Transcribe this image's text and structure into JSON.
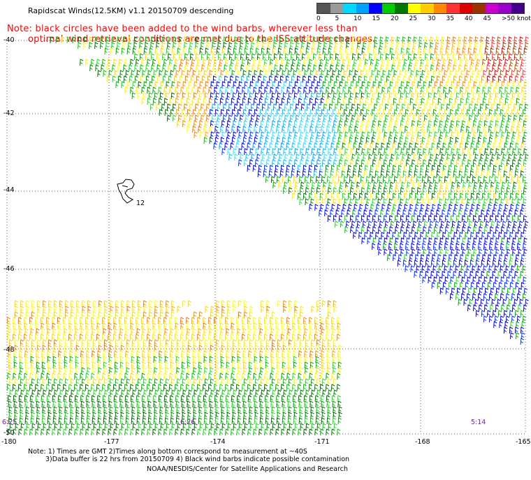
{
  "header": {
    "title": "Rapidscat Winds(12.5KM) v1.1 20150709 descending",
    "note_line1": "Note: black circles have been added to the wind barbs, wherever less than",
    "note_line2": "optimal wind retrieval conditions are met due to the ISS attitude changes."
  },
  "legend": {
    "labels": [
      "0",
      "5",
      "10",
      "15",
      "20",
      "25",
      "30",
      "35",
      "40",
      "45",
      ">50 knots"
    ],
    "colors": [
      "#555555",
      "#9a9a9a",
      "#00d8ff",
      "#00a0ff",
      "#0000ff",
      "#00cc00",
      "#007700",
      "#ffff00",
      "#ffcc00",
      "#ff8800",
      "#ff3333",
      "#dd0000",
      "#993300",
      "#cc00cc",
      "#9900cc",
      "#440088"
    ]
  },
  "map": {
    "lat_labels": [
      "-40",
      "-42",
      "-44",
      "-46",
      "-48",
      "-50"
    ],
    "lon_labels": [
      "-180",
      "-177",
      "-174",
      "-171",
      "-168",
      "-165"
    ],
    "time_labels": [
      "6:25",
      "6:26",
      "5:14"
    ],
    "island_label": "12"
  },
  "footer": {
    "line1": "Note: 1) Times are GMT 2)Times along bottom correspond to measurement at ~40S",
    "line2": "3)Data buffer is 22 hrs from 20150709 4) Black wind barbs indicate possible contamination",
    "line3": "NOAA/NESDIS/Center for Satellite Applications and Research"
  }
}
